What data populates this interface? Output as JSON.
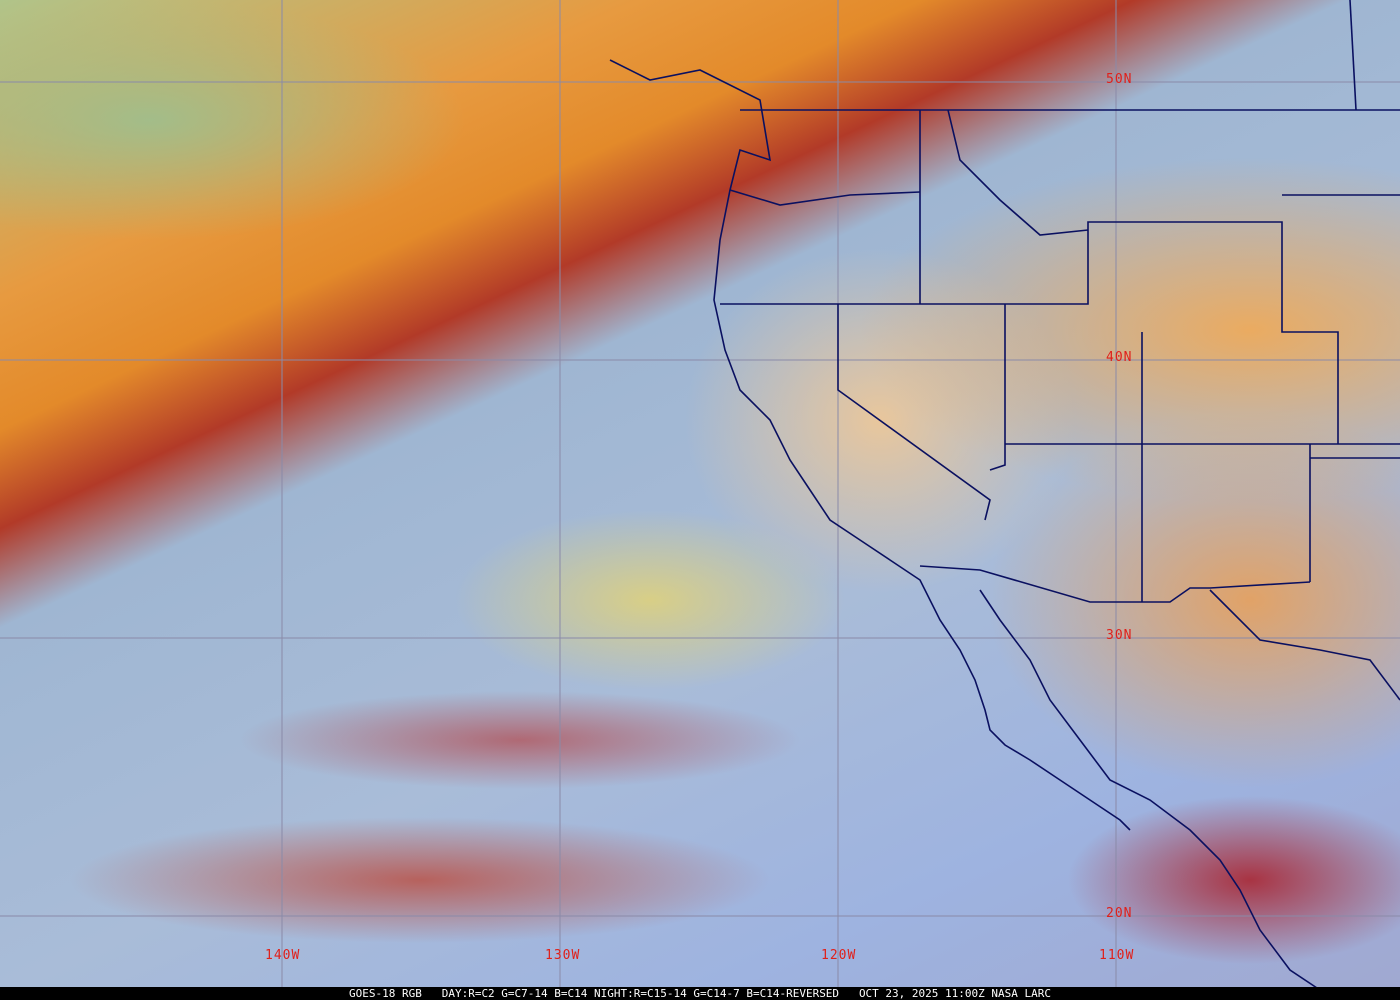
{
  "map": {
    "type": "satellite-rgb-composite",
    "colors": {
      "border": "#0a1060",
      "grid": "#8a8aa8",
      "label": "#e0201a"
    },
    "lat_labels": [
      "50N",
      "40N",
      "30N",
      "20N"
    ],
    "lon_labels": [
      "140W",
      "130W",
      "120W",
      "110W"
    ]
  },
  "caption": {
    "product": "GOES-18 RGB",
    "recipe": "DAY:R=C2 G=C7-14 B=C14 NIGHT:R=C15-14 G=C14-7 B=C14-REVERSED",
    "timestamp": "OCT 23, 2025 11:00Z",
    "source": "NASA LARC"
  }
}
